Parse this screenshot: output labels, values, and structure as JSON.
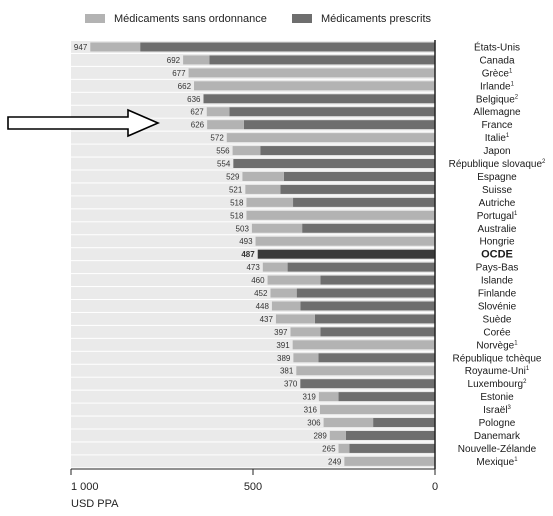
{
  "chart_data": {
    "type": "bar",
    "orientation": "horizontal-reversed",
    "stacked": true,
    "legend": [
      "Médicaments sans ordonnance",
      "Médicaments prescrits"
    ],
    "xlabel": "USD PPA",
    "xlim": [
      1000,
      0
    ],
    "xticks": [
      "1 000",
      "500",
      "0"
    ],
    "colors": {
      "otc": "#b3b3b3",
      "prescribed": "#6e6e6e",
      "oecd": "#3a3a3a",
      "background_band": "#eaeaea"
    },
    "highlight_arrow_row": "France",
    "rows": [
      {
        "country": "États-Unis",
        "sup": "",
        "total": 947,
        "prescribed": 810,
        "otc": 137
      },
      {
        "country": "Canada",
        "sup": "",
        "total": 692,
        "prescribed": 620,
        "otc": 72
      },
      {
        "country": "Grèce",
        "sup": "1",
        "total": 677,
        "prescribed": null,
        "otc": null
      },
      {
        "country": "Irlande",
        "sup": "1",
        "total": 662,
        "prescribed": null,
        "otc": null
      },
      {
        "country": "Belgique",
        "sup": "2",
        "total": 636,
        "prescribed": 636,
        "otc": 0
      },
      {
        "country": "Allemagne",
        "sup": "",
        "total": 627,
        "prescribed": 565,
        "otc": 62
      },
      {
        "country": "France",
        "sup": "",
        "total": 626,
        "prescribed": 525,
        "otc": 101
      },
      {
        "country": "Italie",
        "sup": "1",
        "total": 572,
        "prescribed": null,
        "otc": null
      },
      {
        "country": "Japon",
        "sup": "",
        "total": 556,
        "prescribed": 480,
        "otc": 76
      },
      {
        "country": "République slovaque",
        "sup": "2",
        "total": 554,
        "prescribed": 554,
        "otc": 0
      },
      {
        "country": "Espagne",
        "sup": "",
        "total": 529,
        "prescribed": 415,
        "otc": 114
      },
      {
        "country": "Suisse",
        "sup": "",
        "total": 521,
        "prescribed": 425,
        "otc": 96
      },
      {
        "country": "Autriche",
        "sup": "",
        "total": 518,
        "prescribed": 390,
        "otc": 128
      },
      {
        "country": "Portugal",
        "sup": "1",
        "total": 518,
        "prescribed": null,
        "otc": null
      },
      {
        "country": "Australie",
        "sup": "",
        "total": 503,
        "prescribed": 365,
        "otc": 138
      },
      {
        "country": "Hongrie",
        "sup": "",
        "total": 493,
        "prescribed": null,
        "otc": null
      },
      {
        "country": "OCDE",
        "sup": "",
        "total": 487,
        "prescribed": 487,
        "otc": 0,
        "oecd": true
      },
      {
        "country": "Pays-Bas",
        "sup": "",
        "total": 473,
        "prescribed": 405,
        "otc": 68
      },
      {
        "country": "Islande",
        "sup": "",
        "total": 460,
        "prescribed": 315,
        "otc": 145
      },
      {
        "country": "Finlande",
        "sup": "",
        "total": 452,
        "prescribed": 380,
        "otc": 72
      },
      {
        "country": "Slovénie",
        "sup": "",
        "total": 448,
        "prescribed": 370,
        "otc": 78
      },
      {
        "country": "Suède",
        "sup": "",
        "total": 437,
        "prescribed": 330,
        "otc": 107
      },
      {
        "country": "Corée",
        "sup": "",
        "total": 397,
        "prescribed": 315,
        "otc": 82
      },
      {
        "country": "Norvège",
        "sup": "1",
        "total": 391,
        "prescribed": null,
        "otc": null
      },
      {
        "country": "République tchèque",
        "sup": "",
        "total": 389,
        "prescribed": 320,
        "otc": 69
      },
      {
        "country": "Royaume-Uni",
        "sup": "1",
        "total": 381,
        "prescribed": null,
        "otc": null
      },
      {
        "country": "Luxembourg",
        "sup": "2",
        "total": 370,
        "prescribed": 370,
        "otc": 0
      },
      {
        "country": "Estonie",
        "sup": "",
        "total": 319,
        "prescribed": 265,
        "otc": 54
      },
      {
        "country": "Israël",
        "sup": "3",
        "total": 316,
        "prescribed": null,
        "otc": null
      },
      {
        "country": "Pologne",
        "sup": "",
        "total": 306,
        "prescribed": 170,
        "otc": 136
      },
      {
        "country": "Danemark",
        "sup": "",
        "total": 289,
        "prescribed": 245,
        "otc": 44
      },
      {
        "country": "Nouvelle-Zélande",
        "sup": "",
        "total": 265,
        "prescribed": 235,
        "otc": 30
      },
      {
        "country": "Mexique",
        "sup": "1",
        "total": 249,
        "prescribed": null,
        "otc": null
      }
    ]
  }
}
